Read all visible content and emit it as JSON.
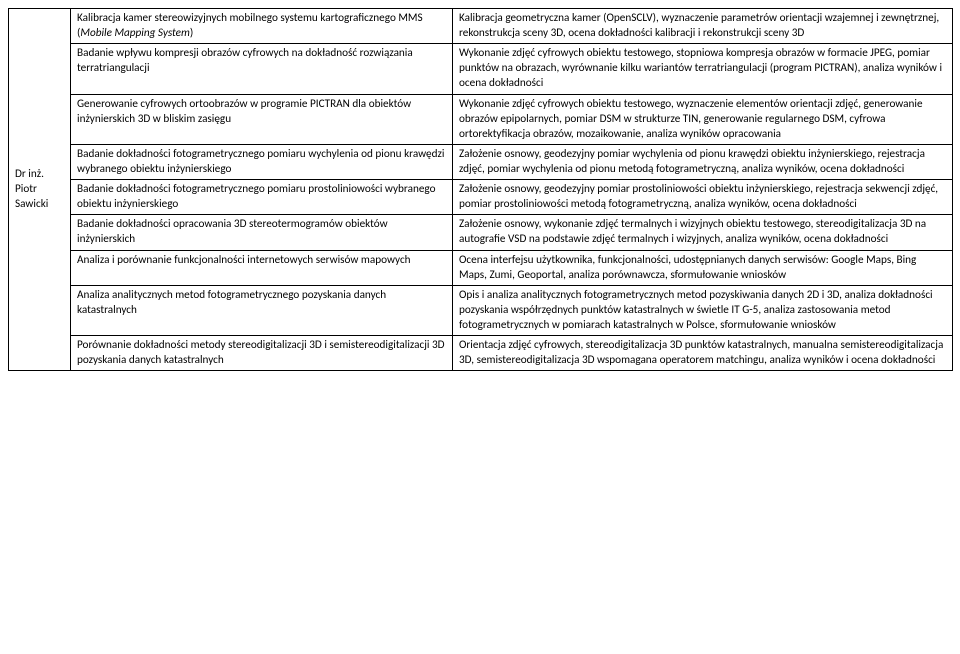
{
  "author": "Dr inż. Piotr Sawicki",
  "rows": [
    {
      "left_pre": "Kalibracja kamer stereowizyjnych mobilnego systemu kartograficznego MMS (",
      "left_italic": "Mobile Mapping System",
      "left_post": ")",
      "right": "Kalibracja geometryczna kamer (OpenSCLV), wyznaczenie parametrów orientacji wzajemnej i zewnętrznej, rekonstrukcja sceny 3D, ocena dokładności kalibracji i rekonstrukcji sceny 3D"
    },
    {
      "left": "Badanie wpływu kompresji obrazów cyfrowych na dokładność rozwiązania terratriangulacji",
      "right": "Wykonanie zdjęć cyfrowych obiektu testowego, stopniowa kompresja obrazów w formacie JPEG, pomiar punktów na obrazach, wyrównanie kilku wariantów terratriangulacji (program PICTRAN), analiza wyników i ocena dokładności"
    },
    {
      "left": "Generowanie cyfrowych ortoobrazów w programie PICTRAN dla obiektów inżynierskich 3D w bliskim zasięgu",
      "right": "Wykonanie zdjęć cyfrowych obiektu testowego, wyznaczenie elementów orientacji zdjęć, generowanie obrazów epipolarnych, pomiar DSM w strukturze TIN, generowanie regularnego DSM, cyfrowa ortorektyfikacja obrazów, mozaikowanie, analiza wyników opracowania"
    },
    {
      "left": "Badanie dokładności fotogrametrycznego pomiaru wychylenia od pionu krawędzi wybranego obiektu inżynierskiego",
      "right": "Założenie osnowy, geodezyjny pomiar wychylenia od pionu krawędzi obiektu inżynierskiego, rejestracja zdjęć, pomiar wychylenia od pionu metodą fotogrametryczną, analiza wyników, ocena dokładności"
    },
    {
      "left": "Badanie dokładności fotogrametrycznego pomiaru prostoliniowości wybranego obiektu inżynierskiego",
      "right": "Założenie osnowy, geodezyjny pomiar prostoliniowości obiektu inżynierskiego, rejestracja sekwencji zdjęć, pomiar prostoliniowości metodą fotogrametryczną, analiza wyników, ocena dokładności"
    },
    {
      "left": "Badanie dokładności opracowania 3D stereotermogramów obiektów inżynierskich",
      "right": "Założenie osnowy, wykonanie zdjęć termalnych i wizyjnych obiektu testowego, stereodigitalizacja 3D na autografie VSD na podstawie zdjęć termalnych i wizyjnych, analiza wyników, ocena dokładności"
    },
    {
      "left": "Analiza i porównanie funkcjonalności internetowych serwisów mapowych",
      "right": "Ocena interfejsu użytkownika, funkcjonalności, udostępnianych danych serwisów: Google Maps, Bing Maps, Zumi, Geoportal, analiza porównawcza, sformułowanie wniosków"
    },
    {
      "left": "Analiza analitycznych metod fotogrametrycznego pozyskania danych katastralnych",
      "right": "Opis i analiza analitycznych fotogrametrycznych metod pozyskiwania danych 2D i 3D, analiza dokładności pozyskania współrzędnych punktów katastralnych w świetle IT G-5, analiza zastosowania metod fotogrametrycznych w pomiarach katastralnych w Polsce, sformułowanie wniosków"
    },
    {
      "left": "Porównanie dokładności metody stereodigitalizacji  3D i semistereodigitalizacji 3D pozyskania danych katastralnych",
      "right": "Orientacja zdjęć cyfrowych, stereodigitalizacja 3D punktów katastralnych, manualna semistereodigitalizacja 3D, semistereodigitalizacja 3D wspomagana operatorem matchingu, analiza wyników i ocena dokładności"
    }
  ]
}
